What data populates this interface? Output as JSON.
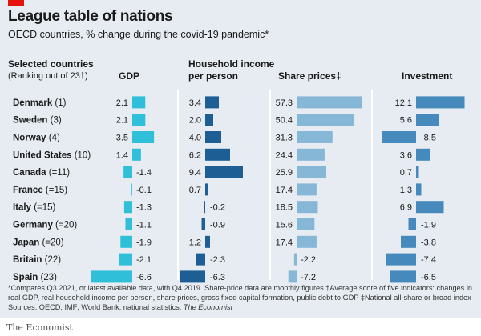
{
  "header": {
    "title": "League table of nations",
    "subtitle": "OECD countries, % change during the covid-19 pandemic*"
  },
  "columns": {
    "countries_label": "Selected countries",
    "countries_sublabel": "(Ranking out of 23†)",
    "gdp": "GDP",
    "household_line1": "Household income",
    "household_line2": "per person",
    "shares": "Share prices‡",
    "investment": "Investment"
  },
  "footnote": {
    "line1": "*Compares Q3 2021, or latest available data, with Q4 2019. Share-price data are monthly figures    †Average score of five indicators: changes in",
    "line2": "real GDP, real household income per person, share prices, gross fixed capital formation, public debt to GDP    ‡National all-share or broad index",
    "line3_prefix": "Sources: OECD; IMF; World Bank; national statistics; ",
    "line3_source": "The Economist"
  },
  "brand": "The Economist",
  "colors": {
    "background": "#e6ecf1",
    "gdp": "#2fbfd8",
    "household": "#1d5f95",
    "shares": "#87b7d6",
    "investment": "#4589bd",
    "brand_red": "#e3120b"
  },
  "chart_data": {
    "type": "table",
    "countries": [
      "Denmark (1)",
      "Sweden (3)",
      "Norway (4)",
      "United States (10)",
      "Canada (=11)",
      "France (=15)",
      "Italy (=15)",
      "Germany (=20)",
      "Japan (=20)",
      "Britain (22)",
      "Spain (23)"
    ],
    "series": [
      {
        "name": "GDP",
        "values": [
          2.1,
          2.1,
          3.5,
          1.4,
          -1.4,
          -0.1,
          -1.3,
          -1.1,
          -1.9,
          -2.1,
          -6.6
        ]
      },
      {
        "name": "Household income per person",
        "values": [
          3.4,
          2.0,
          4.0,
          6.2,
          9.4,
          0.7,
          -0.2,
          -0.9,
          1.2,
          -2.3,
          -6.3
        ]
      },
      {
        "name": "Share prices",
        "values": [
          57.3,
          50.4,
          31.3,
          24.4,
          25.9,
          17.4,
          18.5,
          15.6,
          17.4,
          -2.2,
          -7.2
        ]
      },
      {
        "name": "Investment",
        "values": [
          12.1,
          5.6,
          -8.5,
          3.6,
          0.7,
          1.3,
          6.9,
          -1.9,
          -3.8,
          -7.4,
          -6.5
        ]
      }
    ]
  }
}
